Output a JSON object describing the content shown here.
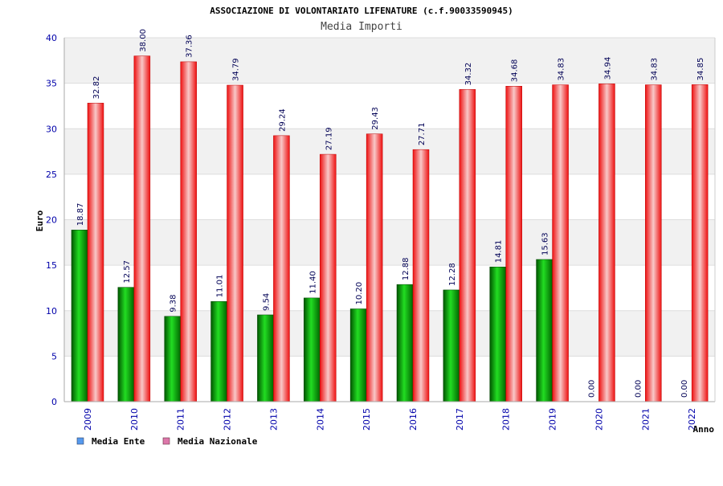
{
  "chart_data": {
    "type": "bar",
    "title": "ASSOCIAZIONE DI VOLONTARIATO LIFENATURE (c.f.90033590945)",
    "subtitle": "Media Importi",
    "xlabel": "Anno",
    "ylabel": "Euro",
    "ylim": [
      0,
      40
    ],
    "yticks": [
      0,
      5,
      10,
      15,
      20,
      25,
      30,
      35,
      40
    ],
    "grid": true,
    "legend_position": "bottom-left",
    "categories": [
      "2009",
      "2010",
      "2011",
      "2012",
      "2013",
      "2014",
      "2015",
      "2016",
      "2017",
      "2018",
      "2019",
      "2020",
      "2021",
      "2022"
    ],
    "series": [
      {
        "name": "Media Ente",
        "color": "#00bb00",
        "legend_color": "#5599ee",
        "values": [
          18.87,
          12.57,
          9.38,
          11.01,
          9.54,
          11.4,
          10.2,
          12.88,
          12.28,
          14.81,
          15.63,
          0.0,
          0.0,
          0.0
        ],
        "labels": [
          "18.87",
          "12.57",
          "9.38",
          "11.01",
          "9.54",
          "11.40",
          "10.20",
          "12.88",
          "12.28",
          "14.81",
          "15.63",
          "0.00",
          "0.00",
          "0.00"
        ]
      },
      {
        "name": "Media Nazionale",
        "color": "#ee1c24",
        "legend_color": "#dd77aa",
        "values": [
          32.82,
          38.0,
          37.36,
          34.79,
          29.24,
          27.19,
          29.43,
          27.71,
          34.32,
          34.68,
          34.83,
          34.94,
          34.83,
          34.85
        ],
        "labels": [
          "32.82",
          "38.00",
          "37.36",
          "34.79",
          "29.24",
          "27.19",
          "29.43",
          "27.71",
          "34.32",
          "34.68",
          "34.83",
          "34.94",
          "34.83",
          "34.85"
        ]
      }
    ]
  }
}
